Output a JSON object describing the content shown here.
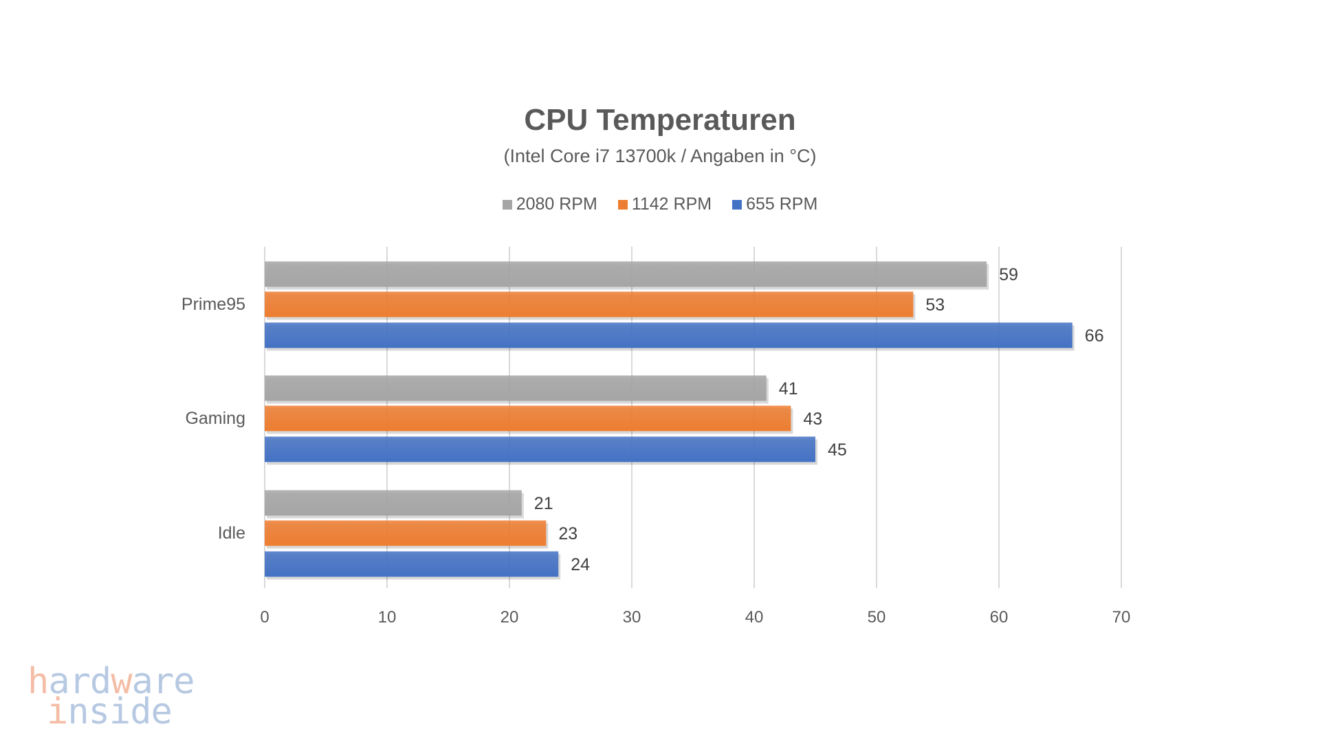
{
  "chart_data": {
    "type": "bar",
    "orientation": "horizontal",
    "title": "CPU Temperaturen",
    "subtitle": "(Intel Core i7 13700k / Angaben in °C)",
    "categories": [
      "Prime95",
      "Gaming",
      "Idle"
    ],
    "series": [
      {
        "name": "2080 RPM",
        "color": "#a5a5a5",
        "values": [
          59,
          41,
          21
        ]
      },
      {
        "name": "1142 RPM",
        "color": "#ed7d31",
        "values": [
          53,
          43,
          23
        ]
      },
      {
        "name": "655 RPM",
        "color": "#4472c4",
        "values": [
          66,
          45,
          24
        ]
      }
    ],
    "xlim": [
      0,
      70
    ],
    "xticks": [
      "0",
      "10",
      "20",
      "30",
      "40",
      "50",
      "60",
      "70"
    ],
    "grid": true,
    "legend": "top-center",
    "xlabel": "",
    "ylabel": ""
  },
  "logo": {
    "line1": "hardware",
    "line2": "inside"
  }
}
